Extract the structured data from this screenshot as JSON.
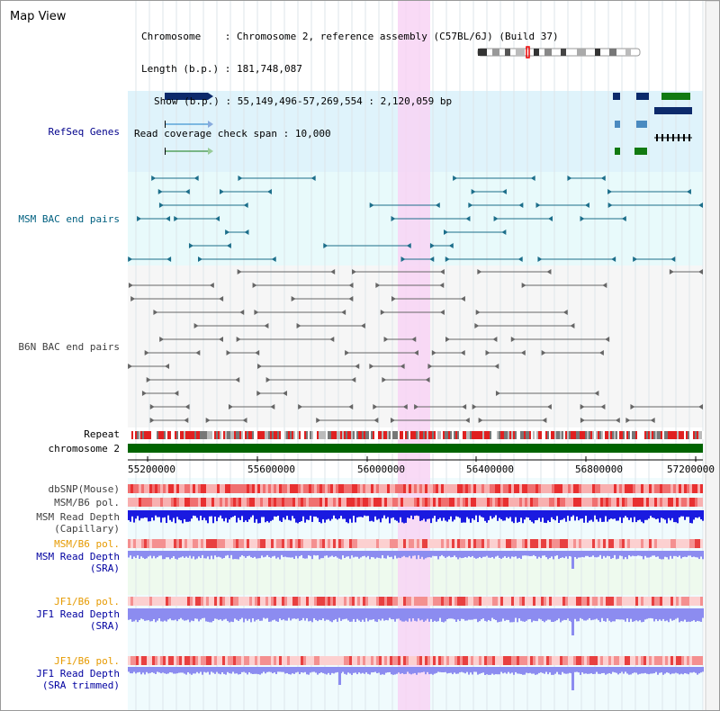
{
  "title": "Map View",
  "info": {
    "chromosome_label": "Chromosome",
    "chromosome_value": "Chromosome 2, reference assembly (C57BL/6J) (Build 37)",
    "length_label": "Length (b.p.)",
    "length_value": "181,748,087",
    "show_label": "Show (b.p.)",
    "show_value": "55,149,496-57,269,554 : 2,120,059 bp",
    "coverage_label": "Read coverage check span",
    "coverage_value": "10,000"
  },
  "tracks": {
    "refseq": "RefSeq Genes",
    "msm_bac": "MSM BAC end pairs",
    "b6n_bac": "B6N BAC end pairs",
    "repeat": "Repeat",
    "chromosome": "chromosome 2",
    "dbsnp": "dbSNP(Mouse)",
    "msm_b6_pol_1": "MSM/B6 pol.",
    "msm_read_depth_cap_1": "MSM Read Depth",
    "msm_read_depth_cap_2": "(Capillary)",
    "msm_b6_pol_2": "MSM/B6 pol.",
    "msm_read_depth_sra_1": "MSM Read Depth",
    "msm_read_depth_sra_2": "(SRA)",
    "jf1_b6_pol_1": "JF1/B6 pol.",
    "jf1_read_depth_sra_1": "JF1 Read Depth",
    "jf1_read_depth_sra_2": "(SRA)",
    "jf1_b6_pol_2": "JF1/B6 pol.",
    "jf1_read_depth_trim_1": "JF1 Read Depth",
    "jf1_read_depth_trim_2": "(SRA trimmed)"
  },
  "axis_ticks": [
    "55200000",
    "55600000",
    "56000000",
    "56400000",
    "56800000",
    "57200000"
  ],
  "colors": {
    "refseq_label": "#00008b",
    "msm_label": "#006080",
    "b6n_label": "#404040",
    "orange_label": "#e69a00",
    "blue_label": "#0000a0",
    "refseq_bg": "#dff3fb",
    "msm_bg": "#e8fafb",
    "highlight": "#f8d4f4",
    "chromosome_bar": "#006400",
    "depth_blue": "#1a1ae0",
    "depth_light": "#8c8cf0"
  }
}
